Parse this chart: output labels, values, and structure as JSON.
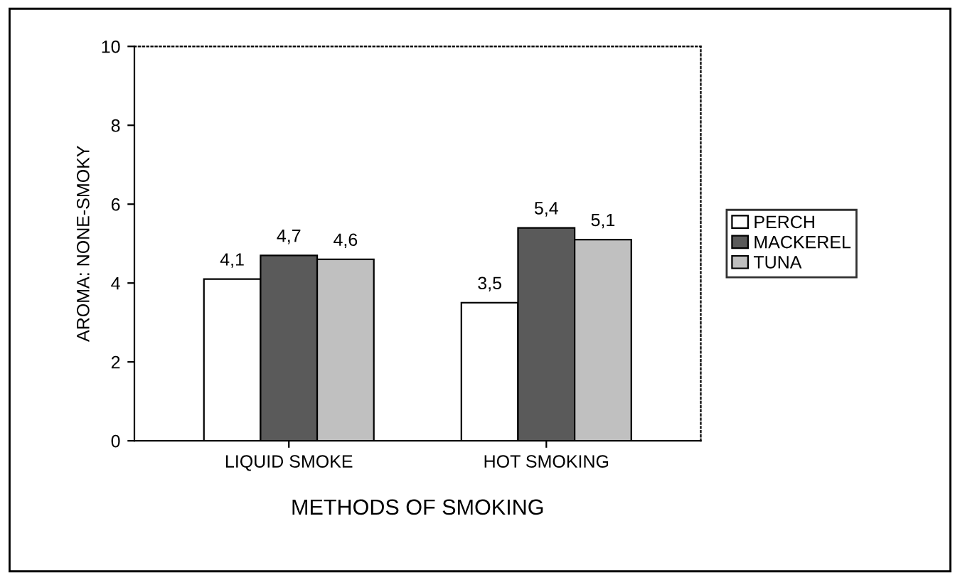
{
  "chart_data": {
    "type": "bar",
    "categories": [
      "LIQUID SMOKE",
      "HOT SMOKING"
    ],
    "series": [
      {
        "name": "PERCH",
        "color": "#ffffff",
        "values": [
          4.1,
          3.5
        ],
        "value_labels": [
          "4,1",
          "3,5"
        ]
      },
      {
        "name": "MACKEREL",
        "color": "#5a5a5a",
        "values": [
          4.7,
          5.4
        ],
        "value_labels": [
          "4,7",
          "5,4"
        ]
      },
      {
        "name": "TUNA",
        "color": "#c0c0c0",
        "values": [
          4.6,
          5.1
        ],
        "value_labels": [
          "4,6",
          "5,1"
        ]
      }
    ],
    "xlabel": "METHODS OF SMOKING",
    "ylabel": "AROMA: NONE-SMOKY",
    "ylim": [
      0,
      10
    ],
    "yticks": [
      0,
      2,
      4,
      6,
      8,
      10
    ],
    "grid": false,
    "legend": "right"
  }
}
